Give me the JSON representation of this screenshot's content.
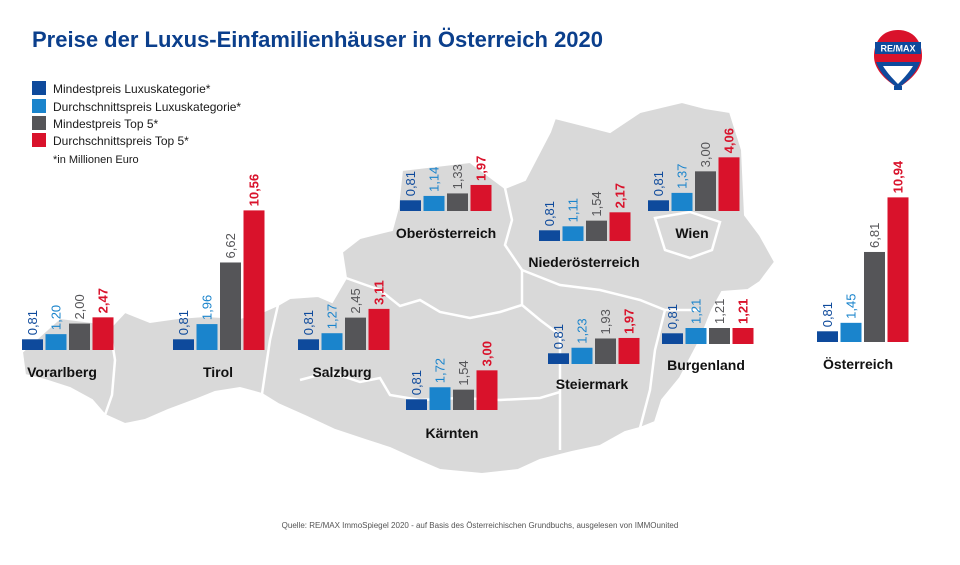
{
  "colors": {
    "series": [
      "#0e4a9c",
      "#1a84cc",
      "#555558",
      "#d9122b"
    ],
    "label": [
      "#0e4a9c",
      "#1a84cc",
      "#555558",
      "#d9122b"
    ],
    "map_fill": "#d9d9d9",
    "map_border": "#ffffff",
    "title": "#0b3f8c"
  },
  "title": "Preise der Luxus-Einfamilienhäuser in Österreich 2020",
  "legend": {
    "items": [
      "Mindestpreis Luxuskategorie*",
      "Durchschnittspreis Luxuskategorie*",
      "Mindestpreis Top 5*",
      "Durchschnittspreis Top 5*"
    ],
    "note": "*in Millionen Euro"
  },
  "logo": {
    "text": "RE/MAX",
    "icon": "hot-air-balloon-icon"
  },
  "source": "Quelle: RE/MAX ImmoSpiegel 2020 - auf Basis des Österreichischen Grundbuchs, ausgelesen von IMMOunited",
  "chart_data": {
    "type": "bar",
    "title": "Preise der Luxus-Einfamilienhäuser in Österreich 2020",
    "unit": "Millionen Euro",
    "series_names": [
      "Mindestpreis Luxuskategorie*",
      "Durchschnittspreis Luxuskategorie*",
      "Mindestpreis Top 5*",
      "Durchschnittspreis Top 5*"
    ],
    "groups": [
      {
        "name": "Vorarlberg",
        "values": [
          0.81,
          1.2,
          2.0,
          2.47
        ],
        "labels": [
          "0,81",
          "1,20",
          "2,00",
          "2,47"
        ]
      },
      {
        "name": "Tirol",
        "values": [
          0.81,
          1.96,
          6.62,
          10.56
        ],
        "labels": [
          "0,81",
          "1,96",
          "6,62",
          "10,56"
        ]
      },
      {
        "name": "Salzburg",
        "values": [
          0.81,
          1.27,
          2.45,
          3.11
        ],
        "labels": [
          "0,81",
          "1,27",
          "2,45",
          "3,11"
        ]
      },
      {
        "name": "Oberösterreich",
        "values": [
          0.81,
          1.14,
          1.33,
          1.97
        ],
        "labels": [
          "0,81",
          "1,14",
          "1,33",
          "1,97"
        ]
      },
      {
        "name": "Niederösterreich",
        "values": [
          0.81,
          1.11,
          1.54,
          2.17
        ],
        "labels": [
          "0,81",
          "1,11",
          "1,54",
          "2,17"
        ]
      },
      {
        "name": "Wien",
        "values": [
          0.81,
          1.37,
          3.0,
          4.06
        ],
        "labels": [
          "0,81",
          "1,37",
          "3,00",
          "4,06"
        ]
      },
      {
        "name": "Kärnten",
        "values": [
          0.81,
          1.72,
          1.54,
          3.0
        ],
        "labels": [
          "0,81",
          "1,72",
          "1,54",
          "3,00"
        ]
      },
      {
        "name": "Steiermark",
        "values": [
          0.81,
          1.23,
          1.93,
          1.97
        ],
        "labels": [
          "0,81",
          "1,23",
          "1,93",
          "1,97"
        ]
      },
      {
        "name": "Burgenland",
        "values": [
          0.81,
          1.21,
          1.21,
          1.21
        ],
        "labels": [
          "0,81",
          "1,21",
          "1,21",
          "1,21"
        ]
      },
      {
        "name": "Österreich",
        "values": [
          0.81,
          1.45,
          6.81,
          10.94
        ],
        "labels": [
          "0,81",
          "1,45",
          "6,81",
          "10,94"
        ]
      }
    ]
  }
}
